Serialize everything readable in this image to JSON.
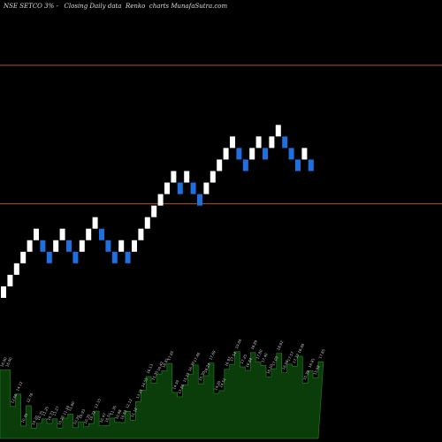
{
  "header": {
    "title": "NSE SETCO 3% -",
    "subtitle": "Closing Daily data",
    "chart_kind": "Renko",
    "source": "charts MunafaSutra.com"
  },
  "colors": {
    "background": "#000000",
    "up_brick": "#ffffff",
    "down_brick": "#1e6fe0",
    "reference_line": "#b5561e",
    "volume_fill": "#0b3d0b",
    "volume_edge": "#1f7a1f",
    "volume_label": "#cccccc"
  },
  "chart_data": {
    "type": "renko",
    "ylim": [
      9,
      20.5
    ],
    "reference_lines": [
      18.8,
      15.2
    ],
    "bricks": [
      {
        "dir": "up",
        "value": 12.9
      },
      {
        "dir": "up",
        "value": 13.2
      },
      {
        "dir": "up",
        "value": 13.5
      },
      {
        "dir": "up",
        "value": 13.8
      },
      {
        "dir": "up",
        "value": 14.1
      },
      {
        "dir": "up",
        "value": 14.4
      },
      {
        "dir": "down",
        "value": 14.1
      },
      {
        "dir": "down",
        "value": 13.8
      },
      {
        "dir": "up",
        "value": 14.1
      },
      {
        "dir": "up",
        "value": 14.4
      },
      {
        "dir": "down",
        "value": 14.1
      },
      {
        "dir": "down",
        "value": 13.8
      },
      {
        "dir": "up",
        "value": 14.1
      },
      {
        "dir": "up",
        "value": 14.4
      },
      {
        "dir": "up",
        "value": 14.7
      },
      {
        "dir": "down",
        "value": 14.4
      },
      {
        "dir": "down",
        "value": 14.1
      },
      {
        "dir": "down",
        "value": 13.8
      },
      {
        "dir": "up",
        "value": 14.1
      },
      {
        "dir": "down",
        "value": 13.8
      },
      {
        "dir": "up",
        "value": 14.1
      },
      {
        "dir": "up",
        "value": 14.4
      },
      {
        "dir": "up",
        "value": 14.7
      },
      {
        "dir": "up",
        "value": 15.0
      },
      {
        "dir": "up",
        "value": 15.3
      },
      {
        "dir": "up",
        "value": 15.6
      },
      {
        "dir": "up",
        "value": 15.9
      },
      {
        "dir": "down",
        "value": 15.6
      },
      {
        "dir": "up",
        "value": 15.9
      },
      {
        "dir": "down",
        "value": 15.6
      },
      {
        "dir": "down",
        "value": 15.3
      },
      {
        "dir": "up",
        "value": 15.6
      },
      {
        "dir": "up",
        "value": 15.9
      },
      {
        "dir": "up",
        "value": 16.2
      },
      {
        "dir": "up",
        "value": 16.5
      },
      {
        "dir": "up",
        "value": 16.8
      },
      {
        "dir": "down",
        "value": 16.5
      },
      {
        "dir": "down",
        "value": 16.2
      },
      {
        "dir": "up",
        "value": 16.5
      },
      {
        "dir": "up",
        "value": 16.8
      },
      {
        "dir": "down",
        "value": 16.5
      },
      {
        "dir": "up",
        "value": 16.8
      },
      {
        "dir": "up",
        "value": 17.1
      },
      {
        "dir": "down",
        "value": 16.8
      },
      {
        "dir": "down",
        "value": 16.5
      },
      {
        "dir": "down",
        "value": 16.2
      },
      {
        "dir": "up",
        "value": 16.5
      },
      {
        "dir": "down",
        "value": 16.2
      }
    ],
    "volume_labels": [
      "16.90",
      "16.90",
      "12.69",
      "14.12",
      "10.45",
      "12.78",
      "10.20",
      "10.75",
      "11.25",
      "10.73",
      "11.27",
      "10.20",
      "11.34",
      "11.80",
      "10.25",
      "10.93",
      "10.35",
      "10.72",
      "12.15",
      "10.47",
      "10.51",
      "11.35",
      "10.88",
      "10.83",
      "12.12",
      "11.10",
      "13.25",
      "14.55",
      "16.13",
      "15.35",
      "16.42",
      "16.81",
      "17.65",
      "14.30",
      "13.80",
      "15.15",
      "16.39",
      "17.46",
      "15.30",
      "16.24",
      "17.69",
      "14.20",
      "14.51",
      "16.97",
      "17.54",
      "19.00",
      "17.25",
      "16.84",
      "18.89",
      "17.80",
      "17.40",
      "16.10",
      "17.03",
      "18.82",
      "16.58",
      "17.57",
      "17.32",
      "18.48",
      "15.39",
      "16.81",
      "15.98",
      "17.85"
    ]
  }
}
